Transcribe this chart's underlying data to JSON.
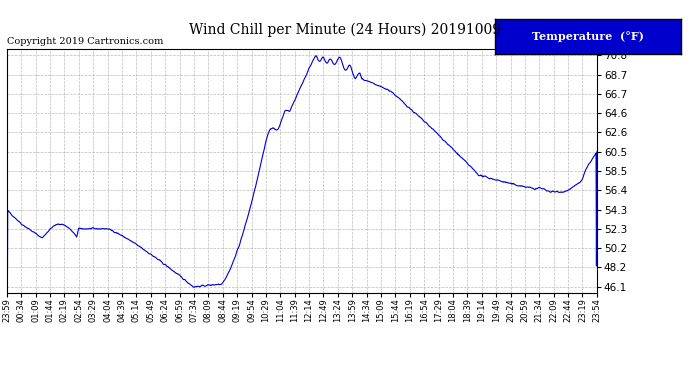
{
  "title": "Wind Chill per Minute (24 Hours) 20191009",
  "copyright": "Copyright 2019 Cartronics.com",
  "legend_label": "Temperature  (°F)",
  "line_color": "#0000CC",
  "background_color": "#ffffff",
  "grid_color": "#aaaaaa",
  "ylim": [
    45.5,
    71.5
  ],
  "yticks": [
    46.1,
    48.2,
    50.2,
    52.3,
    54.3,
    56.4,
    58.5,
    60.5,
    62.6,
    64.6,
    66.7,
    68.7,
    70.8
  ],
  "x_labels": [
    "23:59",
    "00:34",
    "01:09",
    "01:44",
    "02:19",
    "02:54",
    "03:29",
    "04:04",
    "04:39",
    "05:14",
    "05:49",
    "06:24",
    "06:59",
    "07:34",
    "08:09",
    "08:44",
    "09:19",
    "09:54",
    "10:29",
    "11:04",
    "11:39",
    "12:14",
    "12:49",
    "13:24",
    "13:59",
    "14:34",
    "15:09",
    "15:44",
    "16:19",
    "16:54",
    "17:29",
    "18:04",
    "18:39",
    "19:14",
    "19:49",
    "20:24",
    "20:59",
    "21:34",
    "22:09",
    "22:44",
    "23:19",
    "23:54"
  ]
}
